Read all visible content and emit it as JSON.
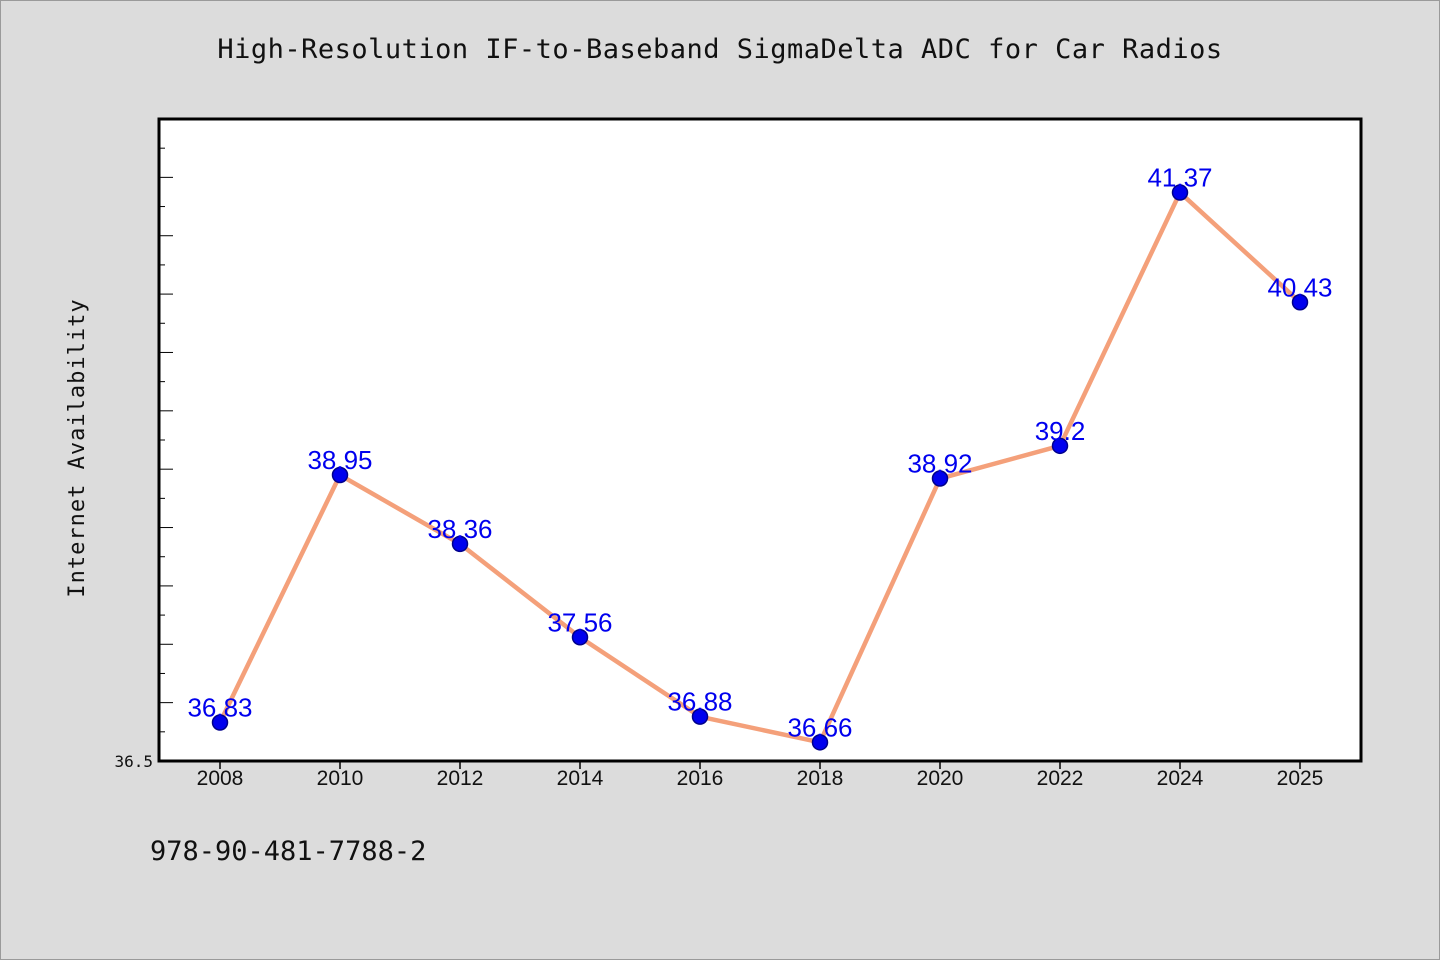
{
  "chart_data": {
    "type": "line",
    "title": "High-Resolution IF-to-Baseband SigmaDelta ADC for Car Radios",
    "ylabel": "Internet Availability",
    "xlabel": "",
    "categories": [
      "2008",
      "2010",
      "2012",
      "2014",
      "2016",
      "2018",
      "2020",
      "2022",
      "2024",
      "2025"
    ],
    "series": [
      {
        "values": [
          36.83,
          38.95,
          38.36,
          37.56,
          36.88,
          36.66,
          38.92,
          39.2,
          41.37,
          40.43
        ],
        "labels": [
          "36.83",
          "38.95",
          "38.36",
          "37.56",
          "36.88",
          "36.66",
          "38.92",
          "39.2",
          "41.37",
          "40.43"
        ]
      }
    ],
    "ylim": [
      36.5,
      42.0
    ],
    "y_tick_labels": [
      "36.5"
    ],
    "grid": false,
    "legend": "none",
    "colors": {
      "line": "#f4a07a",
      "marker_fill": "#0000ee",
      "marker_stroke": "#00008b",
      "data_label": "#0000ee",
      "plot_background": "#ffffff",
      "page_background": "#dcdcdc"
    }
  },
  "footer": {
    "isbn": "978-90-481-7788-2"
  }
}
